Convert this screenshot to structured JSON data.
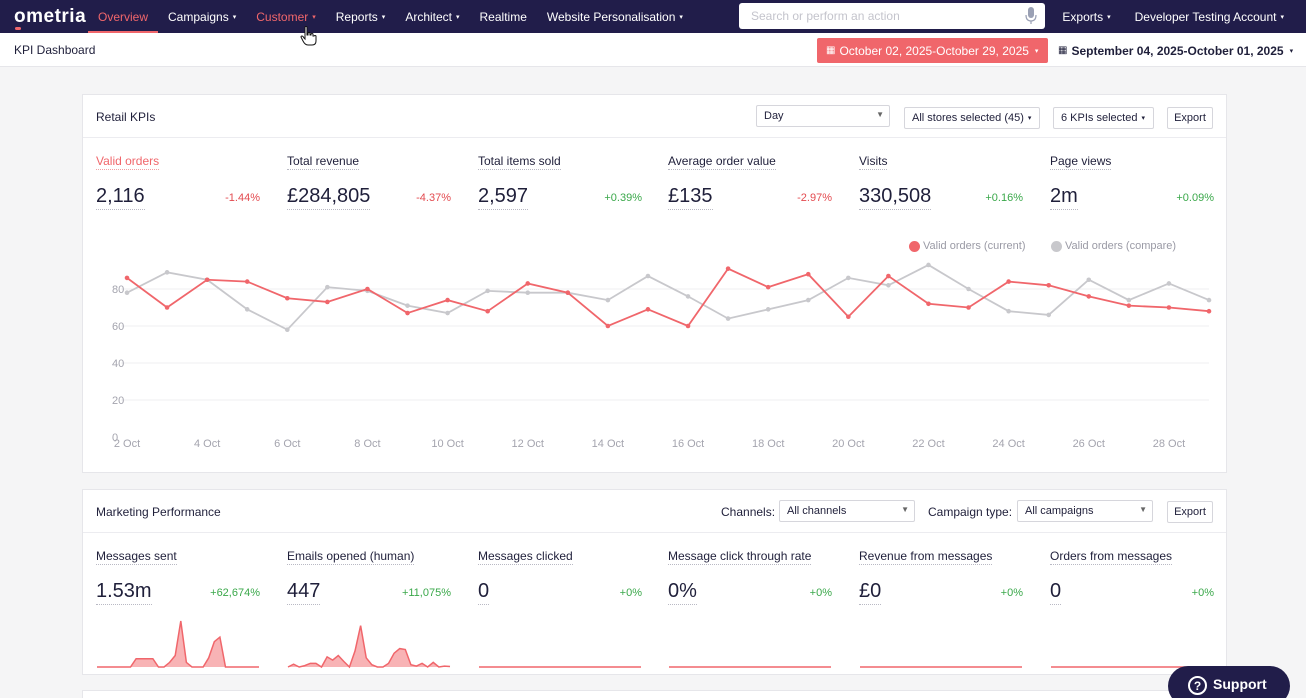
{
  "nav": {
    "logo": "ometria",
    "items": [
      {
        "label": "Overview",
        "caret": false
      },
      {
        "label": "Campaigns",
        "caret": true
      },
      {
        "label": "Customer",
        "caret": true
      },
      {
        "label": "Reports",
        "caret": true
      },
      {
        "label": "Architect",
        "caret": true
      },
      {
        "label": "Realtime",
        "caret": false
      },
      {
        "label": "Website Personalisation",
        "caret": true
      }
    ],
    "search_placeholder": "Search or perform an action",
    "right": [
      {
        "label": "Exports"
      },
      {
        "label": "Developer Testing Account"
      }
    ],
    "caret_glyph": "▾"
  },
  "subheader": {
    "title": "KPI Dashboard",
    "date_current": "October 02, 2025-October 29, 2025",
    "date_compare": "September 04, 2025-October 01, 2025"
  },
  "retail": {
    "title": "Retail KPIs",
    "period": "Day",
    "stores": "All stores selected (45)",
    "kpis_selected": "6 KPIs selected",
    "export": "Export",
    "kpis": [
      {
        "name": "Valid orders",
        "value": "2,116",
        "change": "-1.44%",
        "dir": "neg",
        "selected": true
      },
      {
        "name": "Total revenue",
        "value": "£284,805",
        "change": "-4.37%",
        "dir": "neg"
      },
      {
        "name": "Total items sold",
        "value": "2,597",
        "change": "+0.39%",
        "dir": "pos"
      },
      {
        "name": "Average order value",
        "value": "£135",
        "change": "-2.97%",
        "dir": "neg"
      },
      {
        "name": "Visits",
        "value": "330,508",
        "change": "+0.16%",
        "dir": "pos"
      },
      {
        "name": "Page views",
        "value": "2m",
        "change": "+0.09%",
        "dir": "pos"
      }
    ]
  },
  "chart_data": {
    "type": "line",
    "x": [
      "2 Oct",
      "3 Oct",
      "4 Oct",
      "5 Oct",
      "6 Oct",
      "7 Oct",
      "8 Oct",
      "9 Oct",
      "10 Oct",
      "11 Oct",
      "12 Oct",
      "13 Oct",
      "14 Oct",
      "15 Oct",
      "16 Oct",
      "17 Oct",
      "18 Oct",
      "19 Oct",
      "20 Oct",
      "21 Oct",
      "22 Oct",
      "23 Oct",
      "24 Oct",
      "25 Oct",
      "26 Oct",
      "27 Oct",
      "28 Oct",
      "29 Oct"
    ],
    "x_tick_labels": [
      "2 Oct",
      "4 Oct",
      "6 Oct",
      "8 Oct",
      "10 Oct",
      "12 Oct",
      "14 Oct",
      "16 Oct",
      "18 Oct",
      "20 Oct",
      "22 Oct",
      "24 Oct",
      "26 Oct",
      "28 Oct"
    ],
    "y_ticks": [
      0,
      20,
      40,
      60,
      80
    ],
    "ylim": [
      0,
      100
    ],
    "grid": true,
    "legend_position": "top-right",
    "series": [
      {
        "name": "Valid orders (current)",
        "color": "#f0666b",
        "values": [
          86,
          70,
          85,
          84,
          75,
          73,
          80,
          67,
          74,
          68,
          83,
          78,
          60,
          69,
          60,
          91,
          81,
          88,
          65,
          87,
          72,
          70,
          84,
          82,
          76,
          71,
          70,
          68
        ]
      },
      {
        "name": "Valid orders (compare)",
        "color": "#c8c8cc",
        "values": [
          78,
          89,
          85,
          69,
          58,
          81,
          79,
          71,
          67,
          79,
          78,
          78,
          74,
          87,
          76,
          64,
          69,
          74,
          86,
          82,
          93,
          80,
          68,
          66,
          85,
          74,
          83,
          74
        ]
      }
    ]
  },
  "marketing": {
    "title": "Marketing Performance",
    "channels_label": "Channels:",
    "channels_value": "All channels",
    "campaign_label": "Campaign type:",
    "campaign_value": "All campaigns",
    "export": "Export",
    "kpis": [
      {
        "name": "Messages sent",
        "value": "1.53m",
        "change": "+62,674%",
        "dir": "pos",
        "spark": [
          0,
          0,
          0,
          0,
          0,
          0,
          0,
          0.18,
          0.18,
          0.18,
          0.18,
          0,
          0,
          0.1,
          0.25,
          1,
          0.1,
          0,
          0,
          0,
          0.2,
          0.55,
          0.65,
          0,
          0,
          0,
          0,
          0,
          0,
          0
        ]
      },
      {
        "name": "Emails opened (human)",
        "value": "447",
        "change": "+11,075%",
        "dir": "pos",
        "spark": [
          0,
          0.06,
          0,
          0.03,
          0.08,
          0.08,
          0,
          0.22,
          0.15,
          0.25,
          0.12,
          0,
          0.35,
          0.9,
          0.2,
          0.05,
          0,
          0,
          0.08,
          0.3,
          0.4,
          0.38,
          0.05,
          0.02,
          0.08,
          0,
          0.1,
          0,
          0.02,
          0.01
        ]
      },
      {
        "name": "Messages clicked",
        "value": "0",
        "change": "+0%",
        "dir": "pos",
        "spark": []
      },
      {
        "name": "Message click through rate",
        "value": "0%",
        "change": "+0%",
        "dir": "pos",
        "spark": []
      },
      {
        "name": "Revenue from messages",
        "value": "£0",
        "change": "+0%",
        "dir": "pos",
        "spark": []
      },
      {
        "name": "Orders from messages",
        "value": "0",
        "change": "+0%",
        "dir": "pos",
        "spark": []
      }
    ]
  },
  "support": {
    "label": "Support",
    "icon": "?"
  },
  "colors": {
    "nav_bg": "#211d4a",
    "accent": "#f0666b",
    "negative": "#e34a4f",
    "positive": "#3aa84a"
  }
}
